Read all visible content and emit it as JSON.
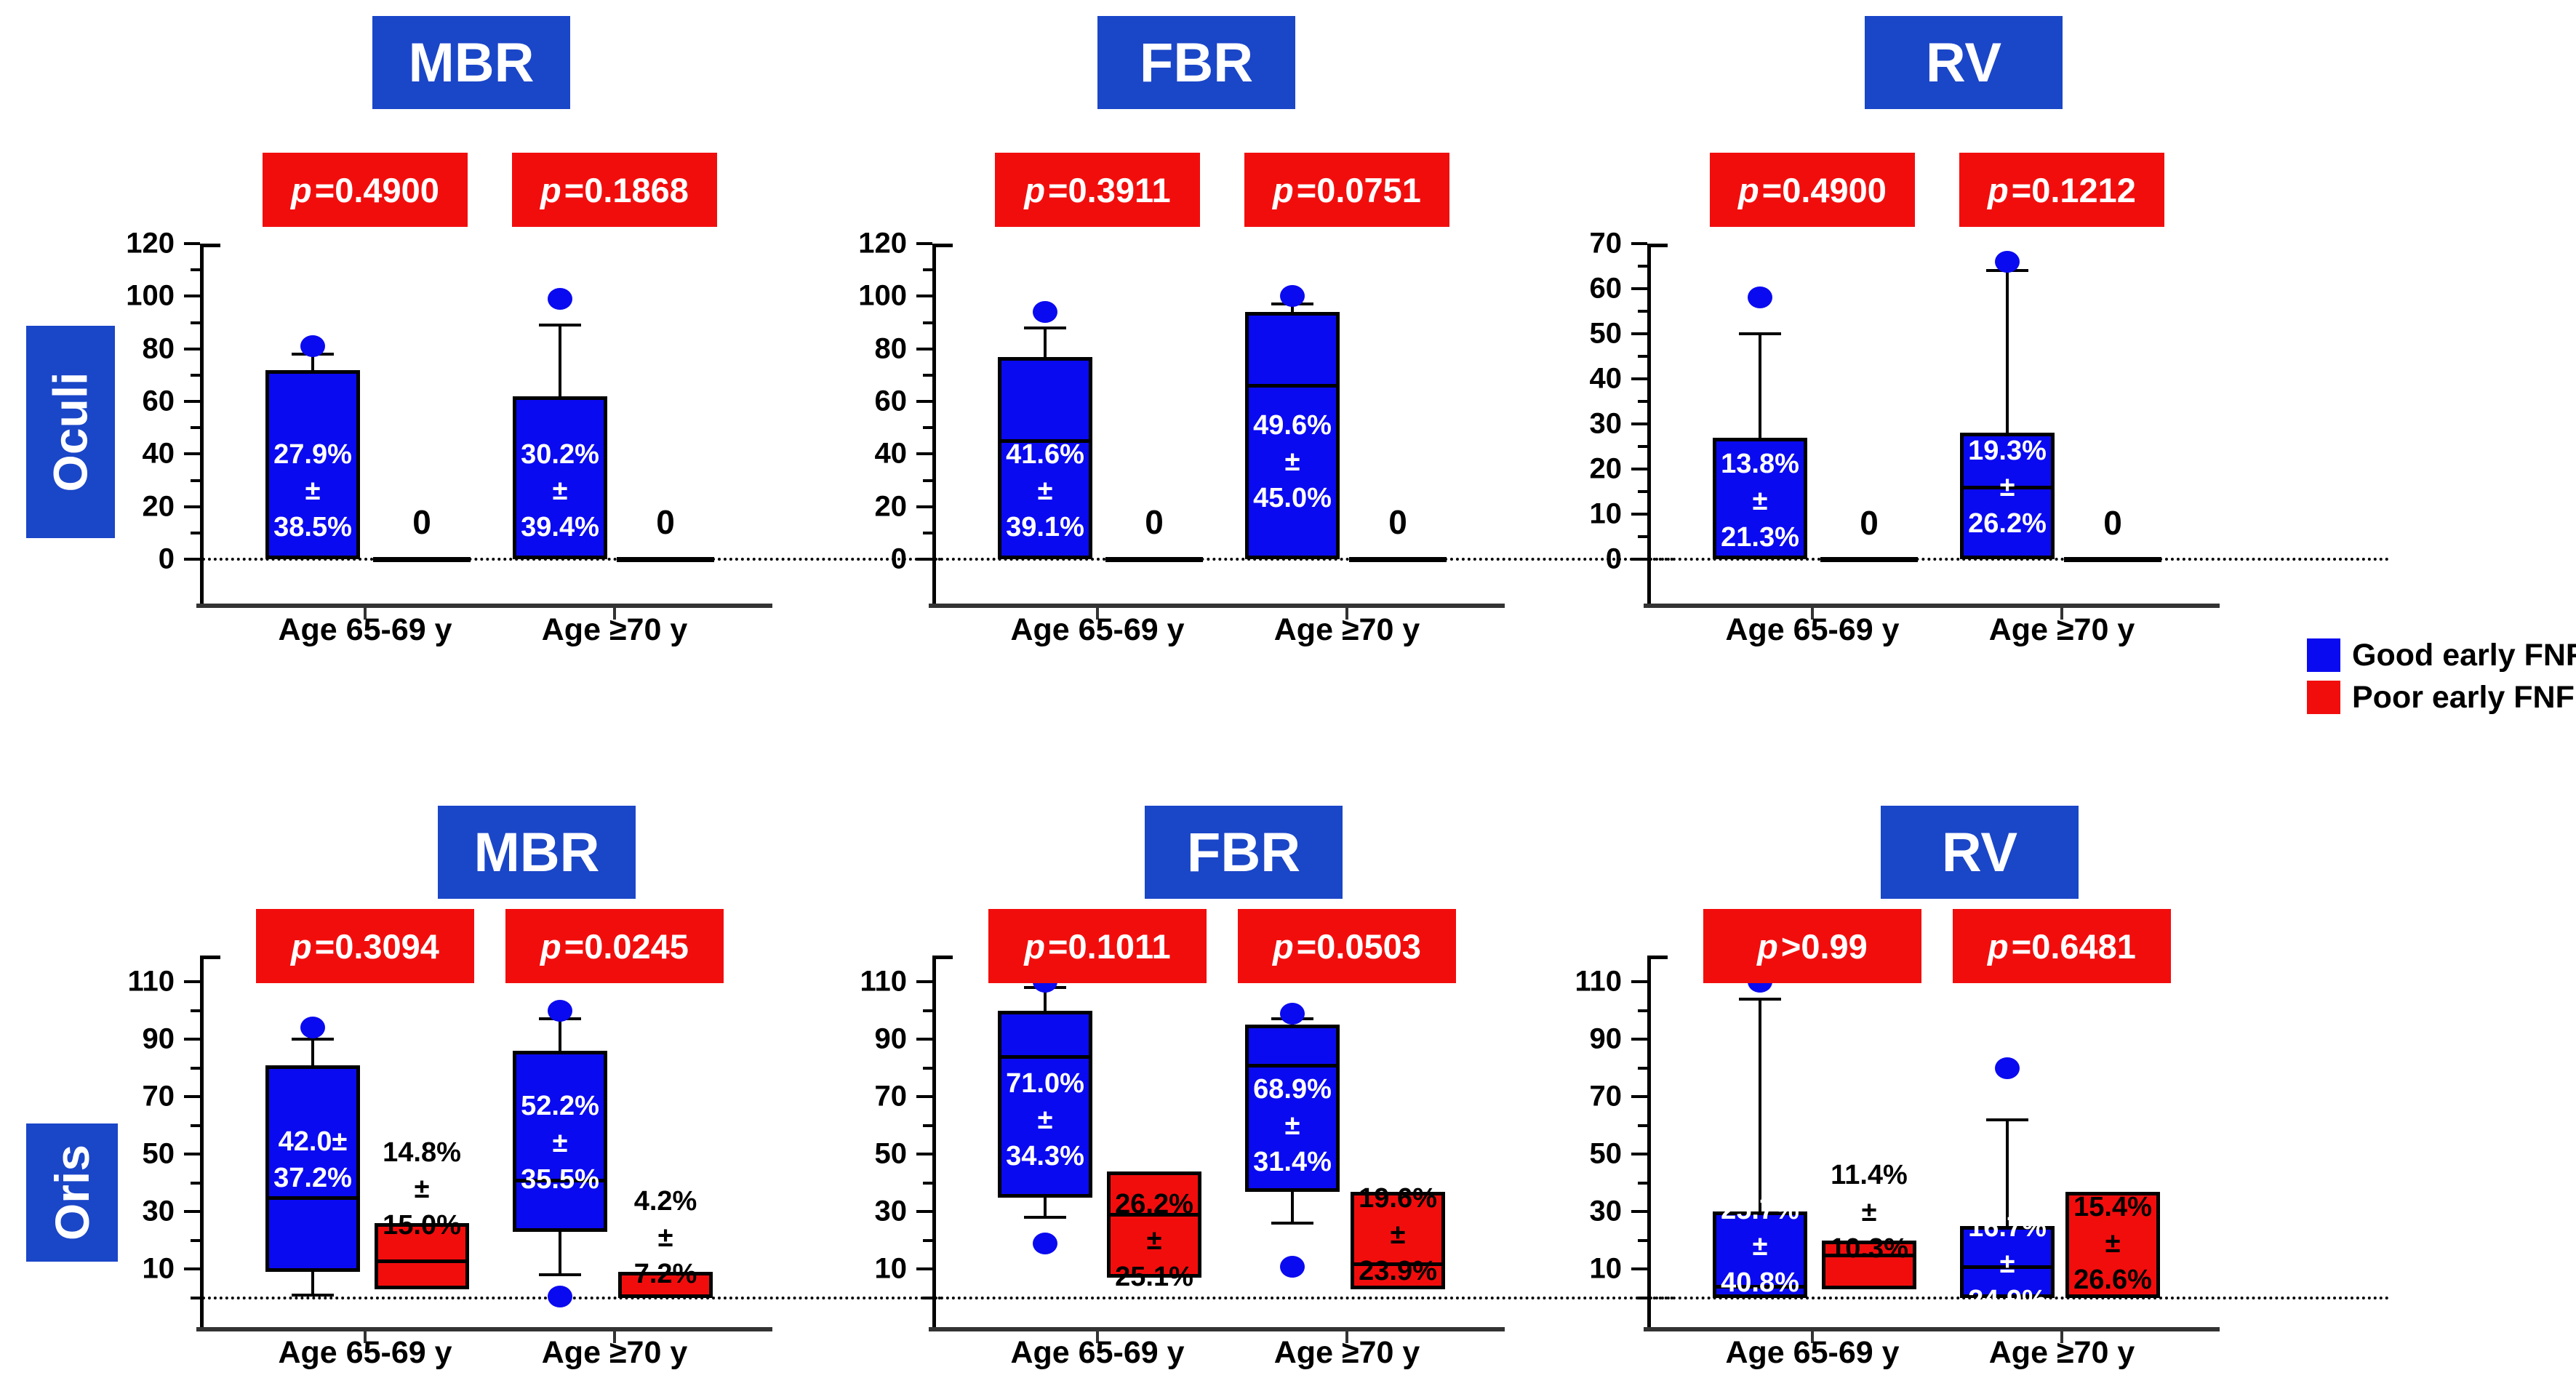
{
  "figure": {
    "background": "#ffffff"
  },
  "colors": {
    "good_fnf_blue": "#0a0af0",
    "poor_fnf_red": "#f20d0d",
    "title_blue": "#1a46c8",
    "p_box_red": "#f20d0d",
    "axis_black": "#000000",
    "baseline_gray": "#333333"
  },
  "row_labels": [
    {
      "label": "Oculi"
    },
    {
      "label": "Oris"
    }
  ],
  "legend": {
    "position": "right",
    "items": [
      {
        "label": "Good early FNF",
        "color": "#0a0af0"
      },
      {
        "label": "Poor early FNF",
        "color": "#f20d0d"
      }
    ]
  },
  "chart_data": [
    {
      "type": "box",
      "row": "Oculi",
      "title": "MBR",
      "categories": [
        "Age 65-69 y",
        "Age ≥70 y"
      ],
      "p_values": [
        "p=0.4900",
        "p=0.1868"
      ],
      "ylim": [
        0,
        120
      ],
      "yticks": [
        0,
        20,
        40,
        60,
        80,
        100,
        120
      ],
      "minor_ticks": [
        10,
        30,
        50,
        70,
        90,
        110
      ],
      "zero_line_dotted": true,
      "series": [
        {
          "name": "Good early FNF",
          "color": "#0a0af0",
          "boxes": [
            {
              "category": "Age 65-69 y",
              "q1": 0,
              "q3": 72,
              "median": null,
              "whisker_high": 78,
              "outlier_high": 81,
              "label": "27.9%±\n38.5%",
              "label_at": 26,
              "label_color": "#ffffff"
            },
            {
              "category": "Age ≥70 y",
              "q1": 0,
              "q3": 62,
              "median": null,
              "whisker_high": 89,
              "outlier_high": 99,
              "label": "30.2%±\n39.4%",
              "label_at": 26,
              "label_color": "#ffffff"
            }
          ]
        },
        {
          "name": "Poor early FNF",
          "color": "#f20d0d",
          "boxes": [
            {
              "category": "Age 65-69 y",
              "flat_zero": true,
              "label": "0",
              "label_at": 14
            },
            {
              "category": "Age ≥70 y",
              "flat_zero": true,
              "label": "0",
              "label_at": 14
            }
          ]
        }
      ]
    },
    {
      "type": "box",
      "row": "Oculi",
      "title": "FBR",
      "categories": [
        "Age 65-69 y",
        "Age ≥70 y"
      ],
      "p_values": [
        "p=0.3911",
        "p=0.0751"
      ],
      "ylim": [
        0,
        120
      ],
      "yticks": [
        0,
        20,
        40,
        60,
        80,
        100,
        120
      ],
      "minor_ticks": [
        10,
        30,
        50,
        70,
        90,
        110
      ],
      "zero_line_dotted": true,
      "series": [
        {
          "name": "Good early FNF",
          "color": "#0a0af0",
          "boxes": [
            {
              "category": "Age 65-69 y",
              "q1": 0,
              "q3": 77,
              "median": 45,
              "whisker_high": 88,
              "outlier_high": 94,
              "label": "41.6%±\n39.1%",
              "label_at": 26,
              "label_color": "#ffffff"
            },
            {
              "category": "Age ≥70 y",
              "q1": 0,
              "q3": 94,
              "median": 66,
              "whisker_high": 97,
              "outlier_high": 100,
              "label": "49.6%±\n45.0%",
              "label_at": 37,
              "label_color": "#ffffff"
            }
          ]
        },
        {
          "name": "Poor early FNF",
          "color": "#f20d0d",
          "boxes": [
            {
              "category": "Age 65-69 y",
              "flat_zero": true,
              "label": "0",
              "label_at": 14
            },
            {
              "category": "Age ≥70 y",
              "flat_zero": true,
              "label": "0",
              "label_at": 14
            }
          ]
        }
      ]
    },
    {
      "type": "box",
      "row": "Oculi",
      "title": "RV",
      "categories": [
        "Age 65-69 y",
        "Age ≥70 y"
      ],
      "p_values": [
        "p=0.4900",
        "p=0.1212"
      ],
      "ylim": [
        0,
        70
      ],
      "yticks": [
        0,
        10,
        20,
        30,
        40,
        50,
        60,
        70
      ],
      "minor_ticks": [
        5,
        15,
        25,
        35,
        45,
        55,
        65
      ],
      "zero_line_dotted": true,
      "series": [
        {
          "name": "Good early FNF",
          "color": "#0a0af0",
          "boxes": [
            {
              "category": "Age 65-69 y",
              "q1": 0,
              "q3": 27,
              "median": null,
              "whisker_high": 50,
              "outlier_high": 58,
              "label": "13.8%±\n21.3%",
              "label_at": 13,
              "label_color": "#ffffff"
            },
            {
              "category": "Age ≥70 y",
              "q1": 0,
              "q3": 28,
              "median": 16,
              "whisker_high": 64,
              "outlier_high": 66,
              "label": "19.3%±\n26.2%",
              "label_at": 16,
              "label_color": "#ffffff"
            }
          ]
        },
        {
          "name": "Poor early FNF",
          "color": "#f20d0d",
          "boxes": [
            {
              "category": "Age 65-69 y",
              "flat_zero": true,
              "label": "0",
              "label_at": 8
            },
            {
              "category": "Age ≥70 y",
              "flat_zero": true,
              "label": "0",
              "label_at": 8
            }
          ]
        }
      ]
    },
    {
      "type": "box",
      "row": "Oris",
      "title": "MBR",
      "categories": [
        "Age 65-69 y",
        "Age ≥70 y"
      ],
      "p_values": [
        "p=0.3094",
        "p=0.0245"
      ],
      "ylim": [
        0,
        118
      ],
      "yticks": [
        10,
        30,
        50,
        70,
        90,
        110
      ],
      "minor_ticks": [
        0,
        20,
        40,
        60,
        80,
        100
      ],
      "zero_line_dotted": true,
      "series": [
        {
          "name": "Good early FNF",
          "color": "#0a0af0",
          "boxes": [
            {
              "category": "Age 65-69 y",
              "q1": 9,
              "q3": 81,
              "median": 35,
              "whisker_high": 90,
              "outlier_high": 94,
              "whisker_low": 1,
              "label": "42.0±\n37.2%",
              "label_at": 48,
              "label_color": "#ffffff"
            },
            {
              "category": "Age ≥70 y",
              "q1": 23,
              "q3": 86,
              "median": 41,
              "whisker_high": 97,
              "outlier_high": 100,
              "whisker_low": 8,
              "outlier_low": 0.5,
              "label": "52.2%±\n35.5%",
              "label_at": 54,
              "label_color": "#ffffff"
            }
          ]
        },
        {
          "name": "Poor early FNF",
          "color": "#f20d0d",
          "boxes": [
            {
              "category": "Age 65-69 y",
              "q1": 3,
              "q3": 26,
              "median": 13,
              "label": "14.8%±\n15.0%",
              "label_at": 38,
              "label_color": "#000000",
              "label_position": "above"
            },
            {
              "category": "Age ≥70 y",
              "q1": 0,
              "q3": 9,
              "median": null,
              "label": "4.2%±\n7.2%",
              "label_at": 21,
              "label_color": "#000000",
              "label_position": "above"
            }
          ]
        }
      ]
    },
    {
      "type": "box",
      "row": "Oris",
      "title": "FBR",
      "categories": [
        "Age 65-69 y",
        "Age ≥70 y"
      ],
      "p_values": [
        "p=0.1011",
        "p=0.0503"
      ],
      "ylim": [
        0,
        118
      ],
      "yticks": [
        10,
        30,
        50,
        70,
        90,
        110
      ],
      "minor_ticks": [
        0,
        20,
        40,
        60,
        80,
        100
      ],
      "zero_line_dotted": true,
      "series": [
        {
          "name": "Good early FNF",
          "color": "#0a0af0",
          "boxes": [
            {
              "category": "Age 65-69 y",
              "q1": 35,
              "q3": 100,
              "median": 84,
              "whisker_high": 108,
              "outlier_high": 110,
              "whisker_low": 28,
              "outlier_low": 19,
              "label": "71.0%±\n34.3%",
              "label_at": 62,
              "label_color": "#ffffff"
            },
            {
              "category": "Age ≥70 y",
              "q1": 37,
              "q3": 95,
              "median": 81,
              "whisker_high": 97,
              "outlier_high": 99,
              "whisker_low": 26,
              "outlier_low": 11,
              "label": "68.9%±\n31.4%",
              "label_at": 60,
              "label_color": "#ffffff"
            }
          ]
        },
        {
          "name": "Poor early FNF",
          "color": "#f20d0d",
          "boxes": [
            {
              "category": "Age 65-69 y",
              "q1": 7,
              "q3": 44,
              "median": 29,
              "label": "26.2%±\n25.1%",
              "label_at": 20,
              "label_color": "#000000"
            },
            {
              "category": "Age ≥70 y",
              "q1": 3,
              "q3": 37,
              "median": 12,
              "label": "19.6%±\n23.9%",
              "label_at": 22,
              "label_color": "#000000"
            }
          ]
        }
      ]
    },
    {
      "type": "box",
      "row": "Oris",
      "title": "RV",
      "categories": [
        "Age 65-69 y",
        "Age ≥70 y"
      ],
      "p_values": [
        "p>0.99",
        "p=0.6481"
      ],
      "ylim": [
        0,
        118
      ],
      "yticks": [
        10,
        30,
        50,
        70,
        90,
        110
      ],
      "minor_ticks": [
        0,
        20,
        40,
        60,
        80,
        100
      ],
      "zero_line_dotted": true,
      "series": [
        {
          "name": "Good early FNF",
          "color": "#0a0af0",
          "boxes": [
            {
              "category": "Age 65-69 y",
              "q1": 0,
              "q3": 30,
              "median": 4,
              "whisker_high": 104,
              "outlier_high": 110,
              "label": "25.7%±\n40.8%",
              "label_at": 18,
              "label_color": "#ffffff"
            },
            {
              "category": "Age ≥70 y",
              "q1": 0,
              "q3": 25,
              "median": 11,
              "whisker_high": 62,
              "outlier_high": 80,
              "label": "16.7%±\n24.9%",
              "label_at": 12,
              "label_color": "#ffffff"
            }
          ]
        },
        {
          "name": "Poor early FNF",
          "color": "#f20d0d",
          "boxes": [
            {
              "category": "Age 65-69 y",
              "q1": 3,
              "q3": 20,
              "median": 15,
              "label": "11.4%±\n10.3%",
              "label_at": 30,
              "label_color": "#000000",
              "label_position": "above"
            },
            {
              "category": "Age ≥70 y",
              "q1": 0,
              "q3": 37,
              "median": null,
              "label": "15.4%±\n26.6%",
              "label_at": 19,
              "label_color": "#000000"
            }
          ]
        }
      ]
    }
  ]
}
